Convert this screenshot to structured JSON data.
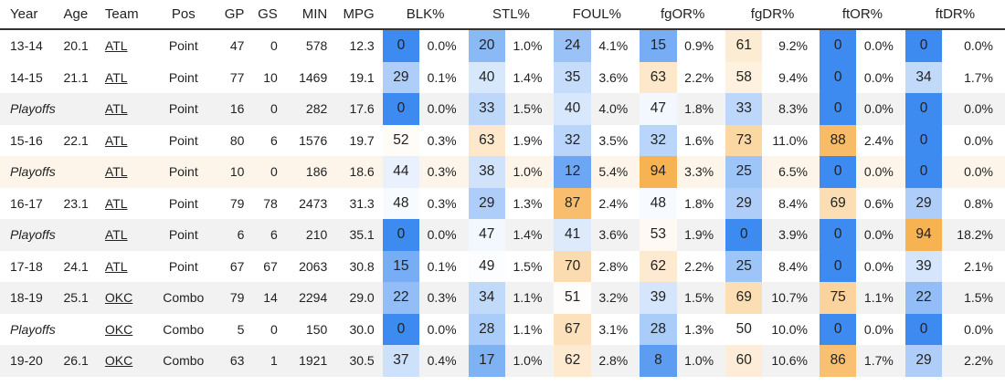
{
  "table": {
    "headers": [
      "Year",
      "Age",
      "Team",
      "Pos",
      "GP",
      "GS",
      "MIN",
      "MPG",
      "BLK%",
      "STL%",
      "FOUL%",
      "fgOR%",
      "fgDR%",
      "ftOR%",
      "ftDR%"
    ],
    "rows": [
      {
        "year": "13-14",
        "age": "20.1",
        "team": "ATL",
        "pos": "Point",
        "gp": "47",
        "gs": "0",
        "min": "578",
        "mpg": "12.3",
        "stats": [
          [
            "0",
            "0.0%"
          ],
          [
            "20",
            "1.0%"
          ],
          [
            "24",
            "4.1%"
          ],
          [
            "15",
            "0.9%"
          ],
          [
            "61",
            "9.2%"
          ],
          [
            "0",
            "0.0%"
          ],
          [
            "0",
            "0.0%"
          ]
        ]
      },
      {
        "year": "14-15",
        "age": "21.1",
        "team": "ATL",
        "pos": "Point",
        "gp": "77",
        "gs": "10",
        "min": "1469",
        "mpg": "19.1",
        "stats": [
          [
            "29",
            "0.1%"
          ],
          [
            "40",
            "1.4%"
          ],
          [
            "35",
            "3.6%"
          ],
          [
            "63",
            "2.2%"
          ],
          [
            "58",
            "9.4%"
          ],
          [
            "0",
            "0.0%"
          ],
          [
            "34",
            "1.7%"
          ]
        ]
      },
      {
        "year": "Playoffs",
        "age": "",
        "team": "ATL",
        "pos": "Point",
        "gp": "16",
        "gs": "0",
        "min": "282",
        "mpg": "17.6",
        "stats": [
          [
            "0",
            "0.0%"
          ],
          [
            "33",
            "1.5%"
          ],
          [
            "40",
            "4.0%"
          ],
          [
            "47",
            "1.8%"
          ],
          [
            "33",
            "8.3%"
          ],
          [
            "0",
            "0.0%"
          ],
          [
            "0",
            "0.0%"
          ]
        ]
      },
      {
        "year": "15-16",
        "age": "22.1",
        "team": "ATL",
        "pos": "Point",
        "gp": "80",
        "gs": "6",
        "min": "1576",
        "mpg": "19.7",
        "stats": [
          [
            "52",
            "0.3%"
          ],
          [
            "63",
            "1.9%"
          ],
          [
            "32",
            "3.5%"
          ],
          [
            "32",
            "1.6%"
          ],
          [
            "73",
            "11.0%"
          ],
          [
            "88",
            "2.4%"
          ],
          [
            "0",
            "0.0%"
          ]
        ]
      },
      {
        "year": "Playoffs",
        "age": "",
        "team": "ATL",
        "pos": "Point",
        "gp": "10",
        "gs": "0",
        "min": "186",
        "mpg": "18.6",
        "stats": [
          [
            "44",
            "0.3%"
          ],
          [
            "38",
            "1.0%"
          ],
          [
            "12",
            "5.4%"
          ],
          [
            "94",
            "3.3%"
          ],
          [
            "25",
            "6.5%"
          ],
          [
            "0",
            "0.0%"
          ],
          [
            "0",
            "0.0%"
          ]
        ]
      },
      {
        "year": "16-17",
        "age": "23.1",
        "team": "ATL",
        "pos": "Point",
        "gp": "79",
        "gs": "78",
        "min": "2473",
        "mpg": "31.3",
        "stats": [
          [
            "48",
            "0.3%"
          ],
          [
            "29",
            "1.3%"
          ],
          [
            "87",
            "2.4%"
          ],
          [
            "48",
            "1.8%"
          ],
          [
            "29",
            "8.4%"
          ],
          [
            "69",
            "0.6%"
          ],
          [
            "29",
            "0.8%"
          ]
        ]
      },
      {
        "year": "Playoffs",
        "age": "",
        "team": "ATL",
        "pos": "Point",
        "gp": "6",
        "gs": "6",
        "min": "210",
        "mpg": "35.1",
        "stats": [
          [
            "0",
            "0.0%"
          ],
          [
            "47",
            "1.4%"
          ],
          [
            "41",
            "3.6%"
          ],
          [
            "53",
            "1.9%"
          ],
          [
            "0",
            "3.9%"
          ],
          [
            "0",
            "0.0%"
          ],
          [
            "94",
            "18.2%"
          ]
        ]
      },
      {
        "year": "17-18",
        "age": "24.1",
        "team": "ATL",
        "pos": "Point",
        "gp": "67",
        "gs": "67",
        "min": "2063",
        "mpg": "30.8",
        "stats": [
          [
            "15",
            "0.1%"
          ],
          [
            "49",
            "1.5%"
          ],
          [
            "70",
            "2.8%"
          ],
          [
            "62",
            "2.2%"
          ],
          [
            "25",
            "8.4%"
          ],
          [
            "0",
            "0.0%"
          ],
          [
            "39",
            "2.1%"
          ]
        ]
      },
      {
        "year": "18-19",
        "age": "25.1",
        "team": "OKC",
        "pos": "Combo",
        "gp": "79",
        "gs": "14",
        "min": "2294",
        "mpg": "29.0",
        "stats": [
          [
            "22",
            "0.3%"
          ],
          [
            "34",
            "1.1%"
          ],
          [
            "51",
            "3.2%"
          ],
          [
            "39",
            "1.5%"
          ],
          [
            "69",
            "10.7%"
          ],
          [
            "75",
            "1.1%"
          ],
          [
            "22",
            "1.5%"
          ]
        ]
      },
      {
        "year": "Playoffs",
        "age": "",
        "team": "OKC",
        "pos": "Combo",
        "gp": "5",
        "gs": "0",
        "min": "150",
        "mpg": "30.0",
        "stats": [
          [
            "0",
            "0.0%"
          ],
          [
            "28",
            "1.1%"
          ],
          [
            "67",
            "3.1%"
          ],
          [
            "28",
            "1.3%"
          ],
          [
            "50",
            "10.0%"
          ],
          [
            "0",
            "0.0%"
          ],
          [
            "0",
            "0.0%"
          ]
        ]
      },
      {
        "year": "19-20",
        "age": "26.1",
        "team": "OKC",
        "pos": "Combo",
        "gp": "63",
        "gs": "1",
        "min": "1921",
        "mpg": "30.5",
        "stats": [
          [
            "37",
            "0.4%"
          ],
          [
            "17",
            "1.0%"
          ],
          [
            "62",
            "2.8%"
          ],
          [
            "8",
            "1.0%"
          ],
          [
            "60",
            "10.6%"
          ],
          [
            "86",
            "1.7%"
          ],
          [
            "29",
            "2.2%"
          ]
        ]
      }
    ]
  },
  "colors": {
    "low": "#3d8af0",
    "mid": "#ffffff",
    "high": "#f6a73a",
    "alt_row": "#f2f2f2",
    "highlight_row": "#fdf5ea"
  }
}
